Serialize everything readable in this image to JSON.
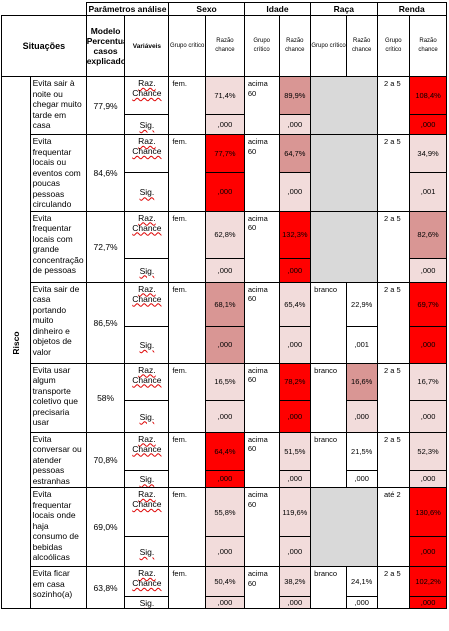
{
  "header": {
    "params": "Parâmetros análise",
    "sexo": "Sexo",
    "idade": "Idade",
    "raca": "Raça",
    "renda": "Renda",
    "situacoes": "Situações",
    "modelo": "Modelo Percentual casos explicados",
    "variaveis": "Variáveis",
    "grupo_critico": "Grupo crítico",
    "razao_chance": "Razão chance"
  },
  "category": "Risco",
  "labels": {
    "raz": "Raz. Chance",
    "sig": "Sig."
  },
  "colors": {
    "red": "#ff0000",
    "medium": "#d99694",
    "light": "#f2dcdb",
    "white": "#ffffff",
    "gray": "#d9d9d9"
  },
  "rows": [
    {
      "situation": "Evita sair à noite ou chegar muito tarde em casa",
      "model_pct": "77,9%",
      "sexo": {
        "group": "fem.",
        "raz": "71,4%",
        "raz_shade": "light",
        "sig": ",000",
        "sig_shade": "light"
      },
      "idade": {
        "group": "acima 60",
        "raz": "89,9%",
        "raz_shade": "medium",
        "sig": ",000",
        "sig_shade": "light"
      },
      "raca": null,
      "renda": {
        "group": "2 a 5",
        "raz": "108,4%",
        "raz_shade": "red",
        "sig": ",000",
        "sig_shade": "red"
      }
    },
    {
      "situation": "Evita frequentar locais ou eventos com poucas pessoas circulando",
      "model_pct": "84,6%",
      "sexo": {
        "group": "fem.",
        "raz": "77,7%",
        "raz_shade": "red",
        "sig": ",000",
        "sig_shade": "red"
      },
      "idade": {
        "group": "acima 60",
        "raz": "64,7%",
        "raz_shade": "medium",
        "sig": ",000",
        "sig_shade": "light"
      },
      "raca": null,
      "renda": {
        "group": "2 a 5",
        "raz": "34,9%",
        "raz_shade": "light",
        "sig": ",001",
        "sig_shade": "light"
      }
    },
    {
      "situation": "Evita frequentar locais com grande concentração de pessoas",
      "model_pct": "72,7%",
      "sexo": {
        "group": "fem.",
        "raz": "62,8%",
        "raz_shade": "light",
        "sig": ",000",
        "sig_shade": "light"
      },
      "idade": {
        "group": "acima 60",
        "raz": "132,3%",
        "raz_shade": "red",
        "sig": ",000",
        "sig_shade": "red"
      },
      "raca": null,
      "renda": {
        "group": "2 a 5",
        "raz": "82,6%",
        "raz_shade": "medium",
        "sig": ",000",
        "sig_shade": "light"
      }
    },
    {
      "situation": "Evita sair de casa portando muito dinheiro e objetos de valor",
      "model_pct": "86,5%",
      "sexo": {
        "group": "fem.",
        "raz": "68,1%",
        "raz_shade": "medium",
        "sig": ",000",
        "sig_shade": "medium"
      },
      "idade": {
        "group": "acima 60",
        "raz": "65,4%",
        "raz_shade": "light",
        "sig": ",000",
        "sig_shade": "light"
      },
      "raca": {
        "group": "branco",
        "raz": "22,9%",
        "raz_shade": "white",
        "sig": ",001",
        "sig_shade": "white"
      },
      "renda": {
        "group": "2 a 5",
        "raz": "69,7%",
        "raz_shade": "red",
        "sig": ",000",
        "sig_shade": "red"
      }
    },
    {
      "situation": "Evita usar algum transporte coletivo que precisaria usar",
      "model_pct": "58%",
      "sexo": {
        "group": "fem.",
        "raz": "16,5%",
        "raz_shade": "light",
        "sig": ",000",
        "sig_shade": "light"
      },
      "idade": {
        "group": "acima 60",
        "raz": "78,2%",
        "raz_shade": "red",
        "sig": ",000",
        "sig_shade": "red"
      },
      "raca": {
        "group": "branco",
        "raz": "16,6%",
        "raz_shade": "medium",
        "sig": ",000",
        "sig_shade": "light"
      },
      "renda": {
        "group": "2 a 5",
        "raz": "16,7%",
        "raz_shade": "light",
        "sig": ",000",
        "sig_shade": "light"
      }
    },
    {
      "situation": "Evita conversar ou atender pessoas estranhas",
      "model_pct": "70,8%",
      "sexo": {
        "group": "fem.",
        "raz": "64,4%",
        "raz_shade": "red",
        "sig": ",000",
        "sig_shade": "red"
      },
      "idade": {
        "group": "acima 60",
        "raz": "51,5%",
        "raz_shade": "light",
        "sig": ",000",
        "sig_shade": "light"
      },
      "raca": {
        "group": "branco",
        "raz": "21,5%",
        "raz_shade": "white",
        "sig": ",000",
        "sig_shade": "white"
      },
      "renda": {
        "group": "2 a 5",
        "raz": "52,3%",
        "raz_shade": "light",
        "sig": ",000",
        "sig_shade": "light"
      }
    },
    {
      "situation": "Evita frequentar locais onde haja consumo de bebidas alcoólicas",
      "model_pct": "69,0%",
      "sexo": {
        "group": "fem.",
        "raz": "55,8%",
        "raz_shade": "light",
        "sig": ",000",
        "sig_shade": "light"
      },
      "idade": {
        "group": "acima 60",
        "raz": "119,6%",
        "raz_shade": "light",
        "sig": ",000",
        "sig_shade": "light"
      },
      "raca": null,
      "renda": {
        "group": "até 2",
        "raz": "130,6%",
        "raz_shade": "red",
        "sig": ",000",
        "sig_shade": "red"
      }
    },
    {
      "situation": "Evita ficar em casa sozinho(a)",
      "model_pct": "63,8%",
      "sexo": {
        "group": "fem.",
        "raz": "50,4%",
        "raz_shade": "light",
        "sig": ",000",
        "sig_shade": "light"
      },
      "idade": {
        "group": "acima 60",
        "raz": "38,2%",
        "raz_shade": "light",
        "sig": ",000",
        "sig_shade": "light"
      },
      "raca": {
        "group": "branco",
        "raz": "24,1%",
        "raz_shade": "white",
        "sig": ",000",
        "sig_shade": "white"
      },
      "renda": {
        "group": "2 a 5",
        "raz": "102,2%",
        "raz_shade": "red",
        "sig": ",000",
        "sig_shade": "red"
      }
    }
  ]
}
